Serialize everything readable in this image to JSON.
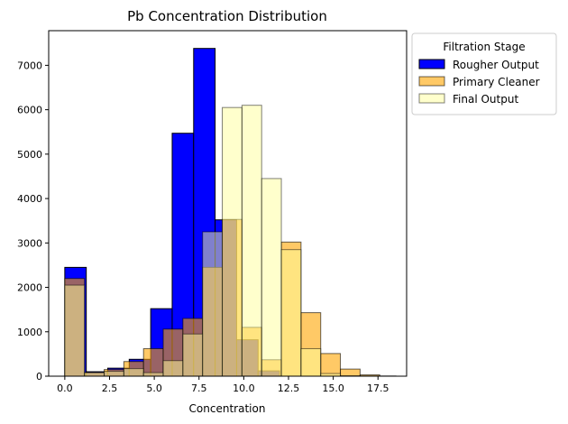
{
  "chart_data": {
    "type": "histogram",
    "title": "Pb Concentration Distribution",
    "xlabel": "Concentration",
    "ylabel": "",
    "xlim": [
      -0.9,
      19.1
    ],
    "ylim": [
      0,
      7780
    ],
    "xticks": [
      0.0,
      2.5,
      5.0,
      7.5,
      10.0,
      12.5,
      15.0,
      17.5
    ],
    "xtick_labels": [
      "0.0",
      "2.5",
      "5.0",
      "7.5",
      "10.0",
      "12.5",
      "15.0",
      "17.5"
    ],
    "yticks": [
      0,
      1000,
      2000,
      3000,
      4000,
      5000,
      6000,
      7000
    ],
    "ytick_labels": [
      "0",
      "1000",
      "2000",
      "3000",
      "4000",
      "5000",
      "6000",
      "7000"
    ],
    "grid": false,
    "legend": {
      "title": "Filtration Stage",
      "placement": "upper right, outside plot"
    },
    "series": [
      {
        "name": "Rougher Output",
        "color": "#0000ff",
        "edge_color": "#000000",
        "opacity": 1.0,
        "bins": [
          [
            0,
            1.2
          ],
          [
            1.2,
            2.4
          ],
          [
            2.4,
            3.6
          ],
          [
            3.6,
            4.8
          ],
          [
            4.8,
            6.0
          ],
          [
            6.0,
            7.2
          ],
          [
            7.2,
            8.4
          ],
          [
            8.4,
            9.6
          ],
          [
            9.6,
            10.8
          ],
          [
            10.8,
            12.0
          ]
        ],
        "counts": [
          2450,
          100,
          180,
          380,
          1520,
          5470,
          7380,
          3520,
          820,
          120
        ]
      },
      {
        "name": "Primary Cleaner",
        "color": "#ffa500",
        "edge_color": "#000000",
        "opacity": 0.6,
        "bins": [
          [
            0,
            1.1
          ],
          [
            1.1,
            2.2
          ],
          [
            2.2,
            3.3
          ],
          [
            3.3,
            4.4
          ],
          [
            4.4,
            5.5
          ],
          [
            5.5,
            6.6
          ],
          [
            6.6,
            7.7
          ],
          [
            7.7,
            8.8
          ],
          [
            8.8,
            9.9
          ],
          [
            9.9,
            11.0
          ],
          [
            11.0,
            12.1
          ],
          [
            12.1,
            13.2
          ],
          [
            13.2,
            14.3
          ],
          [
            14.3,
            15.4
          ],
          [
            15.4,
            16.5
          ],
          [
            16.5,
            17.6
          ]
        ],
        "counts": [
          2200,
          80,
          150,
          330,
          620,
          1060,
          1300,
          2450,
          3530,
          1100,
          370,
          3020,
          1430,
          510,
          160,
          30
        ]
      },
      {
        "name": "Final Output",
        "color": "#ffff99",
        "edge_color": "#000000",
        "opacity": 0.5,
        "bins": [
          [
            0,
            1.1
          ],
          [
            1.1,
            2.2
          ],
          [
            2.2,
            3.3
          ],
          [
            3.3,
            4.4
          ],
          [
            4.4,
            5.5
          ],
          [
            5.5,
            6.6
          ],
          [
            6.6,
            7.7
          ],
          [
            7.7,
            8.8
          ],
          [
            8.8,
            9.9
          ],
          [
            9.9,
            11.0
          ],
          [
            11.0,
            12.1
          ],
          [
            12.1,
            13.2
          ],
          [
            13.2,
            14.3
          ],
          [
            14.3,
            15.4
          ],
          [
            15.4,
            16.5
          ],
          [
            16.5,
            17.6
          ],
          [
            17.6,
            18.5
          ]
        ],
        "counts": [
          2050,
          80,
          110,
          170,
          80,
          350,
          950,
          3250,
          6050,
          6100,
          4450,
          2850,
          620,
          60,
          10,
          5,
          5
        ]
      }
    ]
  }
}
